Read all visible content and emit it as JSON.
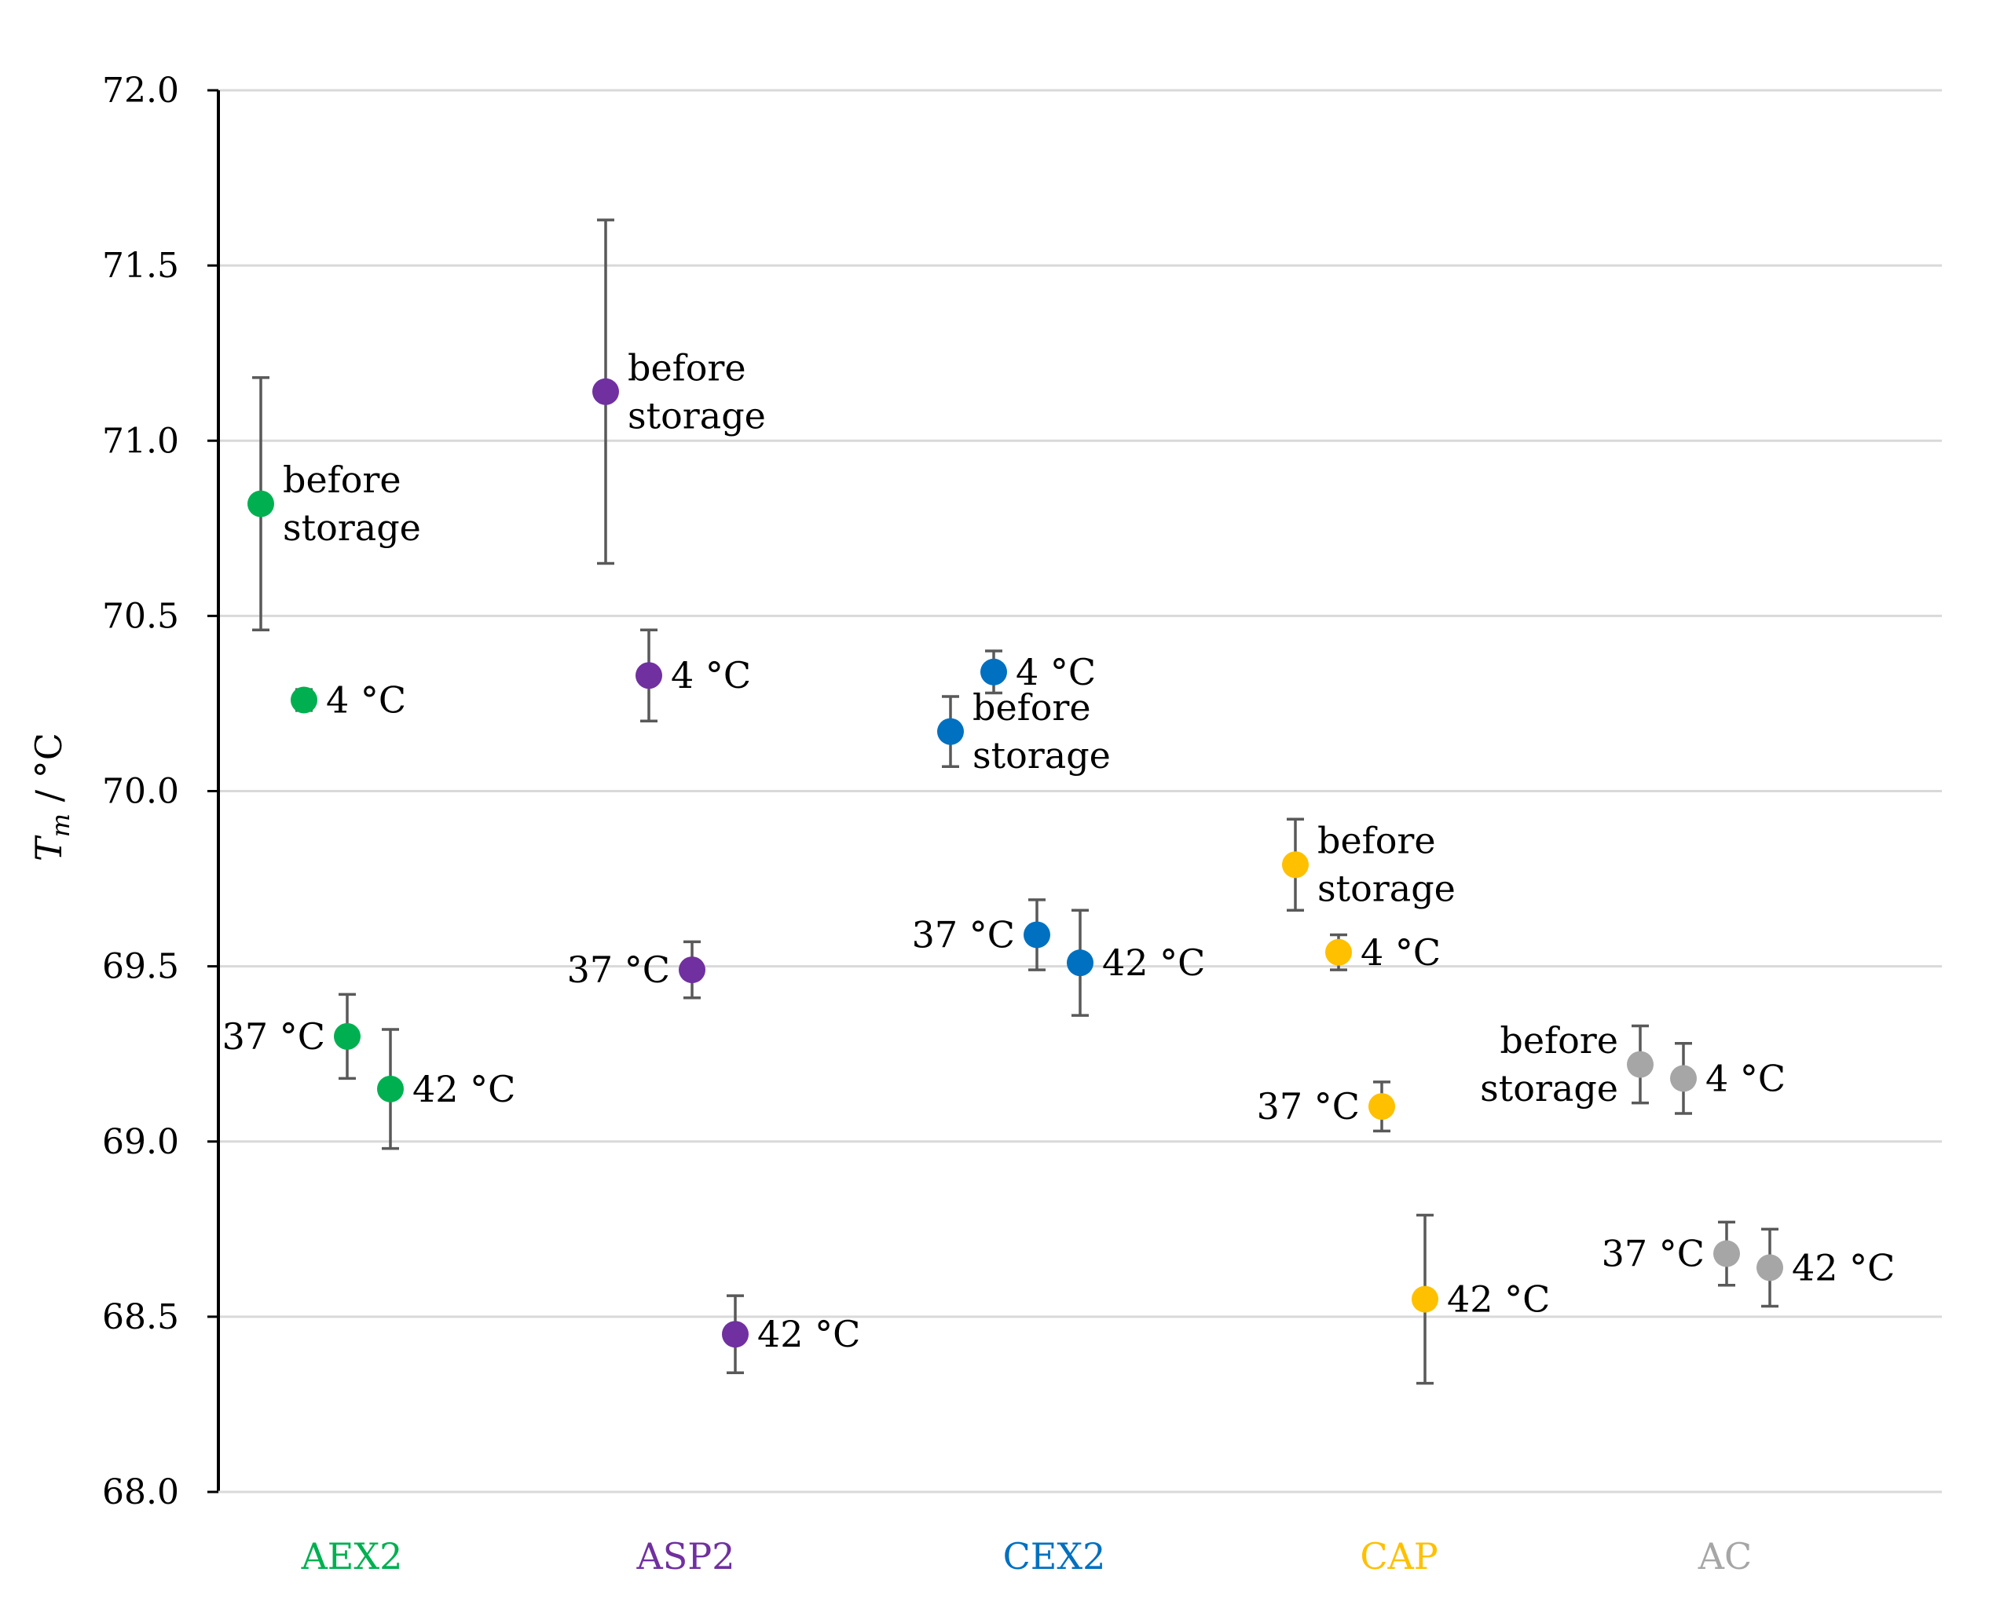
{
  "chart_data": {
    "type": "scatter",
    "title": "",
    "xlabel": "",
    "ylabel": {
      "symbol": "T",
      "subscript": "m",
      "unit": " / °C"
    },
    "ylim": [
      68.0,
      72.0
    ],
    "yticks": [
      "68.0",
      "68.5",
      "69.0",
      "69.5",
      "70.0",
      "70.5",
      "71.0",
      "71.5",
      "72.0"
    ],
    "grid": true,
    "categories": [
      "AEX2",
      "ASP2",
      "CEX2",
      "CAP",
      "AC"
    ],
    "colors": {
      "AEX2": "#00b050",
      "ASP2": "#7030a0",
      "CEX2": "#0070c0",
      "CAP": "#ffc000",
      "AC": "#a6a6a6",
      "error_bar": "#595959",
      "grid": "#d9d9d9",
      "axis": "#000000"
    },
    "series": [
      {
        "name": "AEX2",
        "points": [
          {
            "condition": "before storage",
            "label_lines": [
              "before",
              "storage"
            ],
            "y": 70.82,
            "err": 0.36
          },
          {
            "condition": "4 °C",
            "label_lines": [
              "4 °C"
            ],
            "y": 70.26,
            "err": 0.03
          },
          {
            "condition": "37 °C",
            "label_lines": [
              "37 °C"
            ],
            "y": 69.3,
            "err": 0.12
          },
          {
            "condition": "42 °C",
            "label_lines": [
              "42 °C"
            ],
            "y": 69.15,
            "err": 0.17
          }
        ]
      },
      {
        "name": "ASP2",
        "points": [
          {
            "condition": "before storage",
            "label_lines": [
              "before",
              "storage"
            ],
            "y": 71.14,
            "err": 0.49
          },
          {
            "condition": "4 °C",
            "label_lines": [
              "4 °C"
            ],
            "y": 70.33,
            "err": 0.13
          },
          {
            "condition": "37 °C",
            "label_lines": [
              "37 °C"
            ],
            "y": 69.49,
            "err": 0.08
          },
          {
            "condition": "42 °C",
            "label_lines": [
              "42 °C"
            ],
            "y": 68.45,
            "err": 0.11
          }
        ]
      },
      {
        "name": "CEX2",
        "points": [
          {
            "condition": "before storage",
            "label_lines": [
              "before",
              "storage"
            ],
            "y": 70.17,
            "err": 0.1
          },
          {
            "condition": "4 °C",
            "label_lines": [
              "4 °C"
            ],
            "y": 70.34,
            "err": 0.06
          },
          {
            "condition": "37 °C",
            "label_lines": [
              "37 °C"
            ],
            "y": 69.59,
            "err": 0.1
          },
          {
            "condition": "42 °C",
            "label_lines": [
              "42 °C"
            ],
            "y": 69.51,
            "err": 0.15
          }
        ]
      },
      {
        "name": "CAP",
        "points": [
          {
            "condition": "before storage",
            "label_lines": [
              "before",
              "storage"
            ],
            "y": 69.79,
            "err": 0.13
          },
          {
            "condition": "4 °C",
            "label_lines": [
              "4 °C"
            ],
            "y": 69.54,
            "err": 0.05
          },
          {
            "condition": "37 °C",
            "label_lines": [
              "37 °C"
            ],
            "y": 69.1,
            "err": 0.07
          },
          {
            "condition": "42 °C",
            "label_lines": [
              "42 °C"
            ],
            "y": 68.55,
            "err": 0.24
          }
        ]
      },
      {
        "name": "AC",
        "points": [
          {
            "condition": "before storage",
            "label_lines": [
              "before",
              "storage"
            ],
            "y": 69.22,
            "err": 0.11
          },
          {
            "condition": "4 °C",
            "label_lines": [
              "4 °C"
            ],
            "y": 69.18,
            "err": 0.1
          },
          {
            "condition": "37 °C",
            "label_lines": [
              "37 °C"
            ],
            "y": 68.68,
            "err": 0.09
          },
          {
            "condition": "42 °C",
            "label_lines": [
              "42 °C"
            ],
            "y": 68.64,
            "err": 0.11
          }
        ]
      }
    ]
  }
}
